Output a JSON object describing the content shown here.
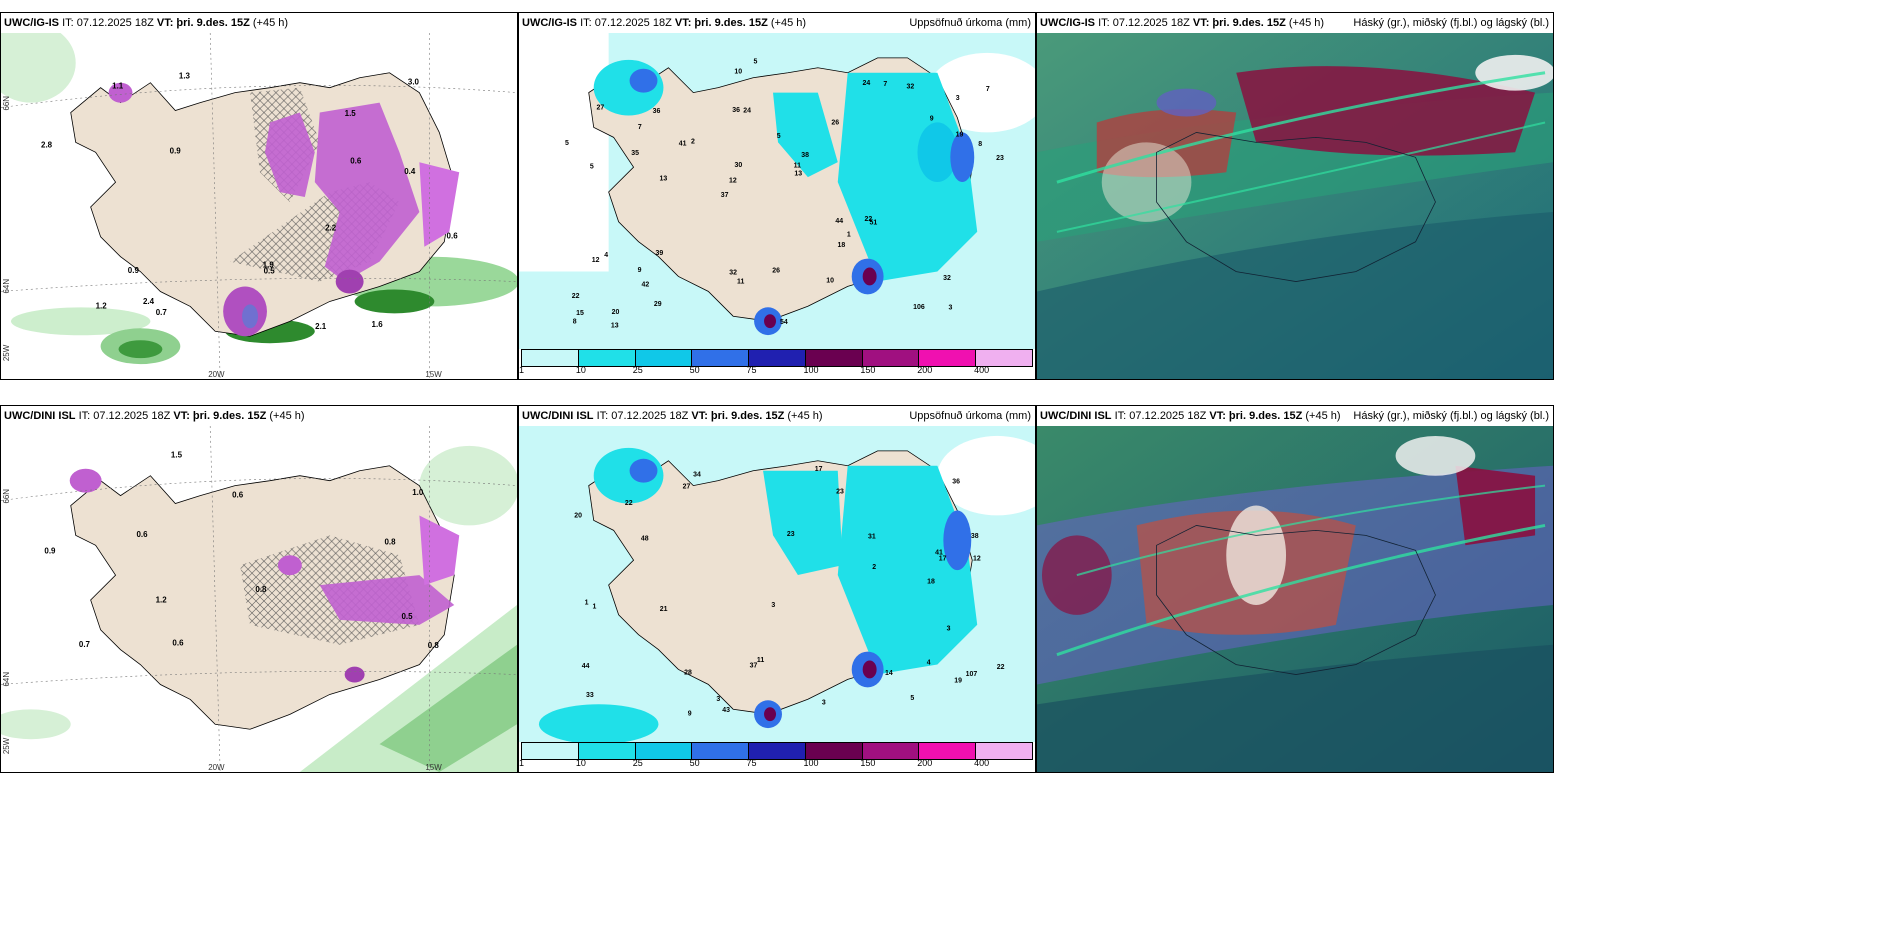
{
  "panels": [
    {
      "model": "UWC/IG-IS",
      "it": "IT: 07.12.2025 18Z",
      "vt_label": "VT:",
      "vt": "þri. 9.des. 15Z",
      "lead": "(+45 h)",
      "right": ""
    },
    {
      "model": "UWC/IG-IS",
      "it": "IT: 07.12.2025 18Z",
      "vt_label": "VT:",
      "vt": "þri. 9.des. 15Z",
      "lead": "(+45 h)",
      "right": "Uppsöfnuð úrkoma (mm)"
    },
    {
      "model": "UWC/IG-IS",
      "it": "IT: 07.12.2025 18Z",
      "vt_label": "VT:",
      "vt": "þri. 9.des. 15Z",
      "lead": "(+45 h)",
      "right": "Háský (gr.), miðský (fj.bl.) og lágský (bl.)"
    },
    {
      "model": "UWC/DINI ISL",
      "it": "IT: 07.12.2025 18Z",
      "vt_label": "VT:",
      "vt": "þri. 9.des. 15Z",
      "lead": "(+45 h)",
      "right": ""
    },
    {
      "model": "UWC/DINI ISL",
      "it": "IT: 07.12.2025 18Z",
      "vt_label": "VT:",
      "vt": "þri. 9.des. 15Z",
      "lead": "(+45 h)",
      "right": "Uppsöfnuð úrkoma (mm)"
    },
    {
      "model": "UWC/DINI ISL",
      "it": "IT: 07.12.2025 18Z",
      "vt_label": "VT:",
      "vt": "þri. 9.des. 15Z",
      "lead": "(+45 h)",
      "right": "Háský (gr.), miðský (fj.bl.) og lágský (bl.)"
    }
  ],
  "axes": {
    "lat_66": "66N",
    "lat_64": "64N",
    "lat_25": "25W",
    "lon_20": "20W",
    "lon_15": "15W"
  },
  "colorbar": {
    "ticks": [
      "1",
      "10",
      "25",
      "50",
      "75",
      "100",
      "150",
      "200",
      "400"
    ],
    "colors": [
      "#c8f8f8",
      "#20e0e8",
      "#10c8e8",
      "#3070e8",
      "#2020b0",
      "#6a0050",
      "#a01080",
      "#f010b0",
      "#f0b0f0"
    ]
  },
  "precip_top": [
    "3",
    "5",
    "3",
    "37",
    "26",
    "20",
    "36",
    "5",
    "4",
    "2",
    "22",
    "42",
    "24",
    "38",
    "51",
    "27",
    "10",
    "23",
    "44",
    "19",
    "12",
    "32",
    "30",
    "36",
    "24",
    "39",
    "106",
    "32",
    "22",
    "54",
    "41",
    "35",
    "18",
    "29",
    "8",
    "11",
    "15",
    "11",
    "13",
    "12",
    "9",
    "7",
    "1",
    "10",
    "9",
    "13",
    "8",
    "26",
    "32",
    "5",
    "13",
    "5",
    "7",
    "7"
  ],
  "precip_bot": [
    "4",
    "38",
    "107",
    "23",
    "33",
    "34",
    "41",
    "28",
    "36",
    "48",
    "12",
    "20",
    "18",
    "43",
    "44",
    "22",
    "19",
    "27",
    "11",
    "17",
    "1",
    "1",
    "3",
    "2",
    "3",
    "37",
    "17",
    "23",
    "31",
    "22",
    "21",
    "14",
    "9",
    "3",
    "3",
    "5"
  ],
  "snow_top": [
    "0.6",
    "1.6",
    "0.5",
    "1.2",
    "1.9",
    "0.9",
    "1.3",
    "1.5",
    "2.1",
    "0.4",
    "2.2",
    "3.0",
    "2.8",
    "0.6",
    "0.7",
    "1.1",
    "0.9",
    "2.4"
  ],
  "snow_bot": [
    "0.8",
    "1.0",
    "0.6",
    "0.5",
    "0.8",
    "0.6",
    "0.7",
    "0.8",
    "1.2",
    "0.9",
    "1.5",
    "0.6"
  ]
}
